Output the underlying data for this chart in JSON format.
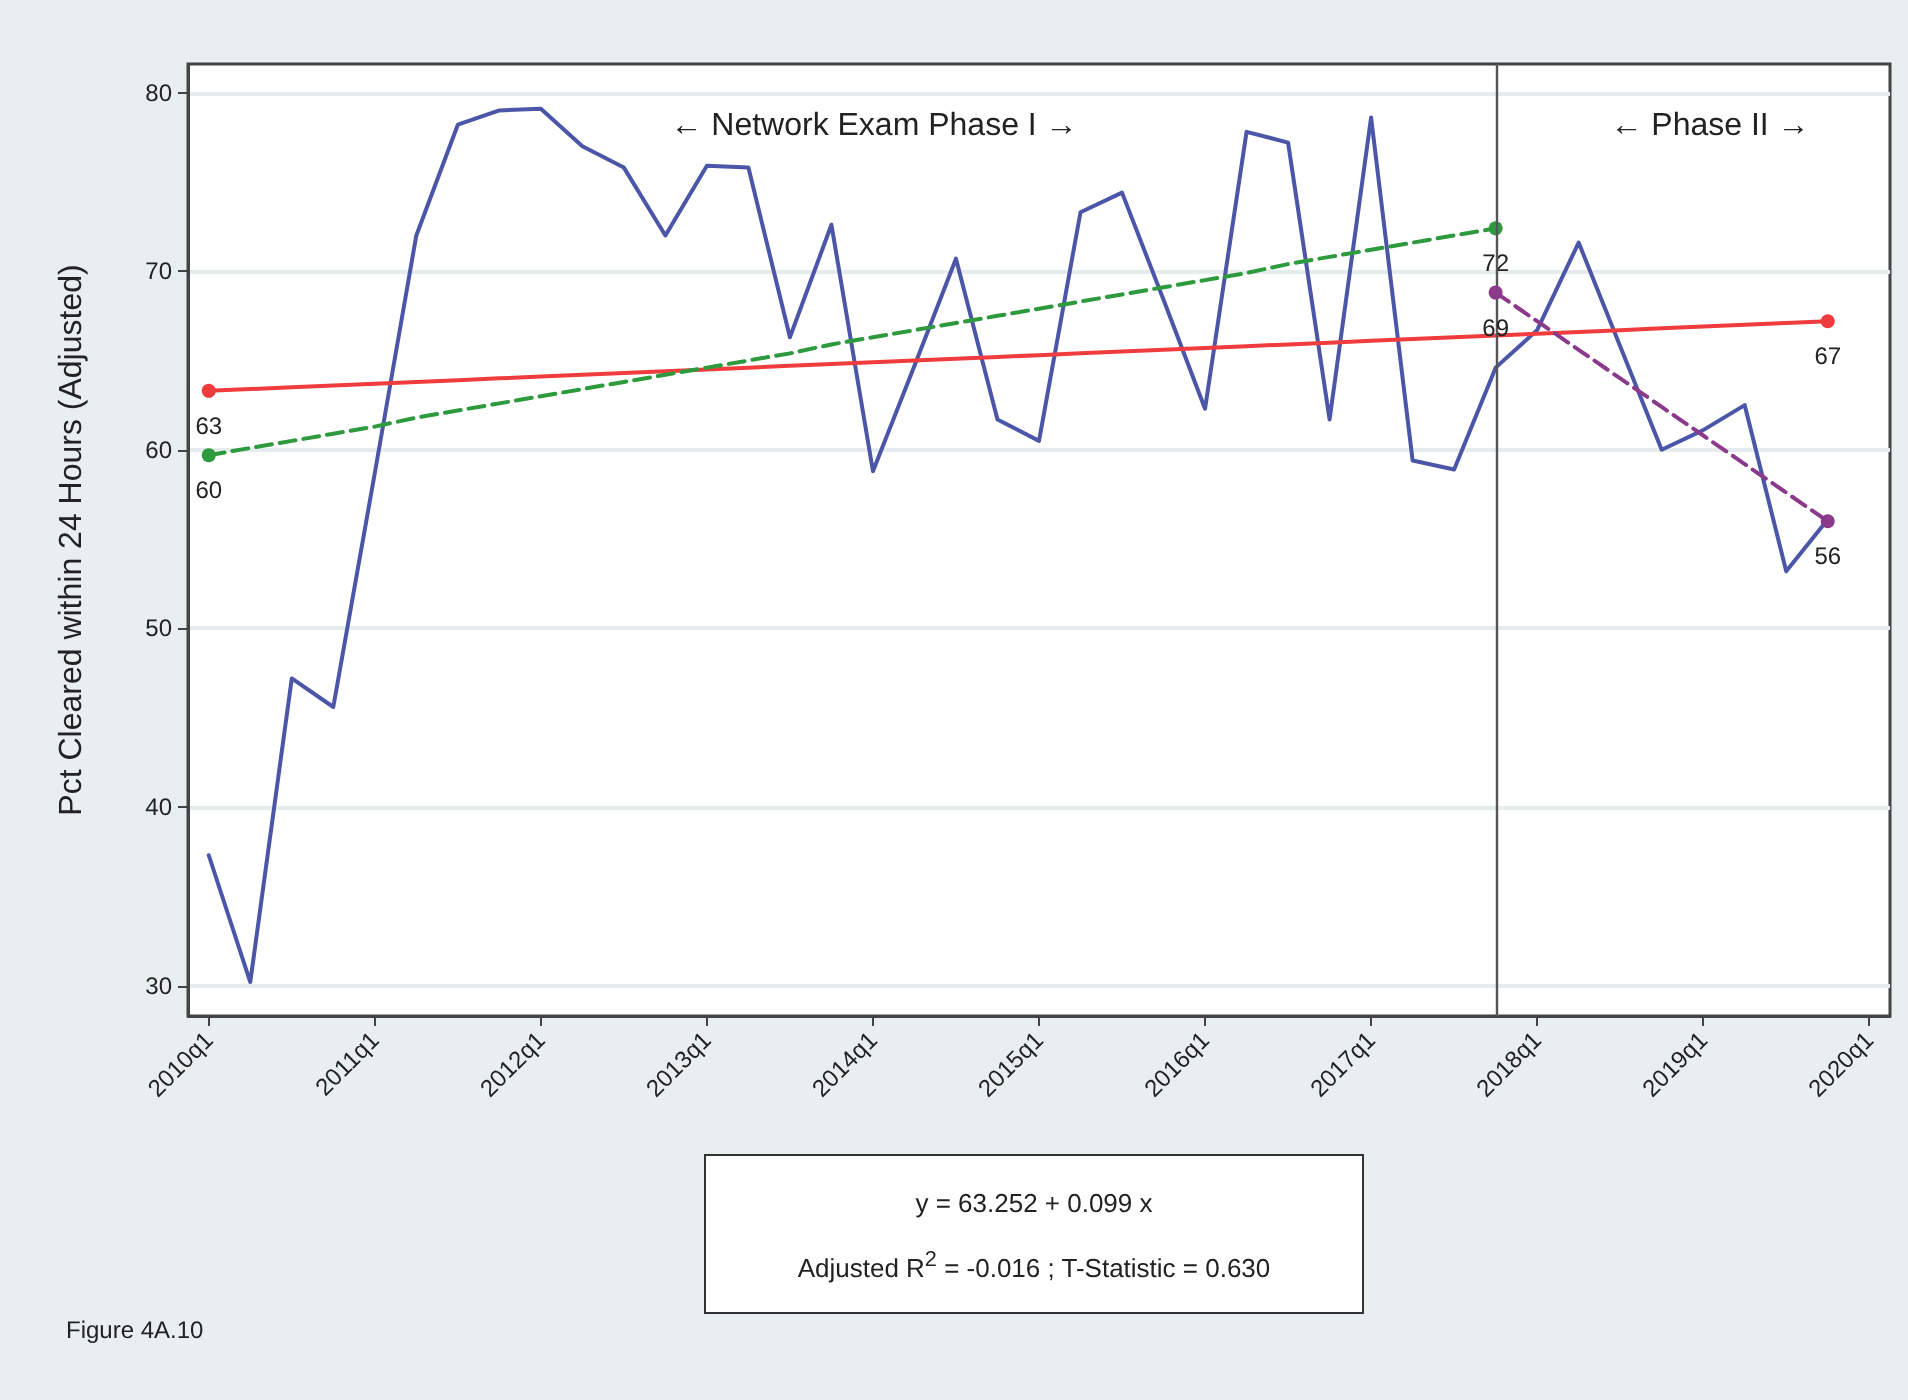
{
  "chart_data": {
    "type": "line",
    "ylabel": "Pct Cleared within 24 Hours (Adjusted)",
    "annotations": [
      "← Network Exam Phase I →",
      "← Phase II →",
      "y = 63.252 + 0.099 x",
      "Adjusted R$^{2}$ = -0.016 ; T-Statistic = 0.630",
      "Figure 4A.10"
    ],
    "categories": [
      "2010q1",
      null,
      null,
      null,
      "2011q1",
      null,
      null,
      null,
      "2012q1",
      null,
      null,
      null,
      "2013q1",
      null,
      null,
      null,
      "2014q1",
      null,
      null,
      null,
      "2015q1",
      null,
      null,
      null,
      "2016q1",
      null,
      null,
      null,
      "2017q1",
      null,
      null,
      null,
      "2018q1",
      null,
      null,
      null,
      "2019q1",
      null,
      null,
      null,
      "2020q1"
    ],
    "series": [
      {
        "color": "#4c56a8",
        "marker": "none",
        "line_style": "solid",
        "values": [
          37.3,
          30.2,
          47.2,
          45.6,
          58.7,
          72.0,
          78.2,
          79.0,
          79.1,
          77.0,
          75.8,
          72.0,
          75.9,
          75.8,
          66.3,
          72.6,
          58.8,
          64.7,
          70.7,
          61.7,
          60.5,
          73.3,
          74.4,
          68.4,
          62.3,
          77.8,
          77.2,
          61.7,
          78.6,
          59.4,
          58.9,
          64.6,
          66.7,
          71.6,
          65.8,
          60.0,
          61.1,
          62.5,
          53.2,
          56.1,
          null
        ]
      },
      {
        "color": "#f03c3c",
        "line_style": "solid",
        "values": [
          63.3,
          63.4,
          63.5,
          63.6,
          63.7,
          63.8,
          63.9,
          64.0,
          64.1,
          64.2,
          64.3,
          64.4,
          64.5,
          64.6,
          64.7,
          64.8,
          64.9,
          65.0,
          65.1,
          65.2,
          65.3,
          65.4,
          65.5,
          65.6,
          65.7,
          65.8,
          65.9,
          66.0,
          66.1,
          66.2,
          66.3,
          66.4,
          66.5,
          66.6,
          66.7,
          66.8,
          66.9,
          67.0,
          67.1,
          67.2,
          null
        ],
        "value_labels": [
          "63",
          null,
          null,
          null,
          null,
          null,
          null,
          null,
          null,
          null,
          null,
          null,
          null,
          null,
          null,
          null,
          null,
          null,
          null,
          null,
          null,
          null,
          null,
          null,
          null,
          null,
          null,
          null,
          null,
          null,
          null,
          null,
          null,
          null,
          null,
          null,
          null,
          null,
          null,
          "67",
          null
        ]
      },
      {
        "color": "#2e9a3e",
        "line_style": "dashed",
        "values": [
          59.7,
          60.1,
          60.5,
          60.9,
          61.3,
          61.8,
          62.2,
          62.6,
          63.0,
          63.4,
          63.8,
          64.2,
          64.6,
          65.0,
          65.4,
          65.9,
          66.3,
          66.7,
          67.1,
          67.5,
          67.9,
          68.3,
          68.7,
          69.1,
          69.5,
          69.9,
          70.4,
          70.8,
          71.2,
          71.6,
          72.0,
          72.4,
          null,
          null,
          null,
          null,
          null,
          null,
          null,
          null,
          null
        ],
        "value_labels": [
          "60",
          null,
          null,
          null,
          null,
          null,
          null,
          null,
          null,
          null,
          null,
          null,
          null,
          null,
          null,
          null,
          null,
          null,
          null,
          null,
          null,
          null,
          null,
          null,
          null,
          null,
          null,
          null,
          null,
          null,
          null,
          "72",
          null,
          null,
          null,
          null,
          null,
          null,
          null,
          null,
          null
        ]
      },
      {
        "color": "#8b3a8b",
        "line_style": "dashed",
        "values": [
          null,
          null,
          null,
          null,
          null,
          null,
          null,
          null,
          null,
          null,
          null,
          null,
          null,
          null,
          null,
          null,
          null,
          null,
          null,
          null,
          null,
          null,
          null,
          null,
          null,
          null,
          null,
          null,
          null,
          null,
          null,
          68.8,
          67.2,
          65.6,
          64.0,
          62.4,
          60.8,
          59.2,
          57.6,
          56.0,
          null
        ],
        "value_labels": [
          null,
          null,
          null,
          null,
          null,
          null,
          null,
          null,
          null,
          null,
          null,
          null,
          null,
          null,
          null,
          null,
          null,
          null,
          null,
          null,
          null,
          null,
          null,
          null,
          null,
          null,
          null,
          null,
          null,
          null,
          null,
          "69",
          null,
          null,
          null,
          null,
          null,
          null,
          null,
          "56",
          null
        ]
      }
    ],
    "ylim": [
      28.3,
      81.6
    ],
    "yticks": [
      30,
      40,
      50,
      60,
      70,
      80
    ],
    "grid": "y"
  }
}
